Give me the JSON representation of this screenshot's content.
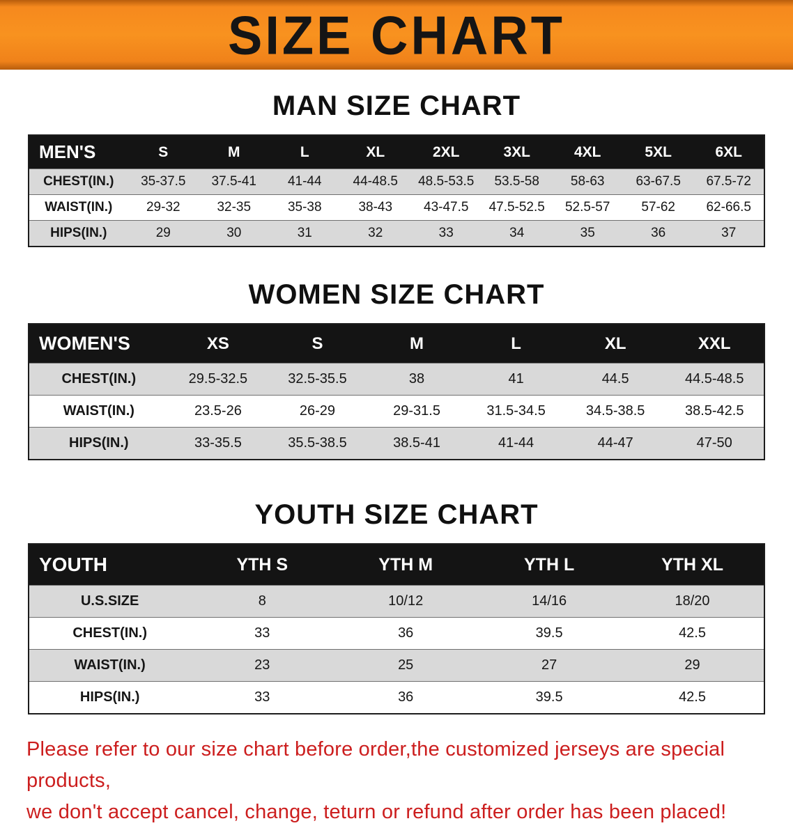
{
  "banner": {
    "title": "SIZE CHART"
  },
  "colors": {
    "banner_orange": "#f6891e",
    "table_header_black": "#141414",
    "row_stripe_gray": "#d9d9d9",
    "note_red": "#cc1e1e"
  },
  "sections": [
    {
      "heading": "MAN SIZE CHART",
      "table": {
        "header": [
          "MEN'S",
          "S",
          "M",
          "L",
          "XL",
          "2XL",
          "3XL",
          "4XL",
          "5XL",
          "6XL"
        ],
        "rows": [
          [
            "CHEST(IN.)",
            "35-37.5",
            "37.5-41",
            "41-44",
            "44-48.5",
            "48.5-53.5",
            "53.5-58",
            "58-63",
            "63-67.5",
            "67.5-72"
          ],
          [
            "WAIST(IN.)",
            "29-32",
            "32-35",
            "35-38",
            "38-43",
            "43-47.5",
            "47.5-52.5",
            "52.5-57",
            "57-62",
            "62-66.5"
          ],
          [
            "HIPS(IN.)",
            "29",
            "30",
            "31",
            "32",
            "33",
            "34",
            "35",
            "36",
            "37"
          ]
        ]
      }
    },
    {
      "heading": "WOMEN SIZE CHART",
      "table": {
        "header": [
          "WOMEN'S",
          "XS",
          "S",
          "M",
          "L",
          "XL",
          "XXL"
        ],
        "rows": [
          [
            "CHEST(IN.)",
            "29.5-32.5",
            "32.5-35.5",
            "38",
            "41",
            "44.5",
            "44.5-48.5"
          ],
          [
            "WAIST(IN.)",
            "23.5-26",
            "26-29",
            "29-31.5",
            "31.5-34.5",
            "34.5-38.5",
            "38.5-42.5"
          ],
          [
            "HIPS(IN.)",
            "33-35.5",
            "35.5-38.5",
            "38.5-41",
            "41-44",
            "44-47",
            "47-50"
          ]
        ]
      }
    },
    {
      "heading": "YOUTH SIZE CHART",
      "table": {
        "header": [
          "YOUTH",
          "YTH S",
          "YTH M",
          "YTH L",
          "YTH XL"
        ],
        "rows": [
          [
            "U.S.SIZE",
            "8",
            "10/12",
            "14/16",
            "18/20"
          ],
          [
            "CHEST(IN.)",
            "33",
            "36",
            "39.5",
            "42.5"
          ],
          [
            "WAIST(IN.)",
            "23",
            "25",
            "27",
            "29"
          ],
          [
            "HIPS(IN.)",
            "33",
            "36",
            "39.5",
            "42.5"
          ]
        ]
      }
    }
  ],
  "footer": {
    "line1": "Please refer to our size chart before order,the customized jerseys are special products,",
    "line2": "we don't accept cancel, change, teturn or refund after order has been placed!"
  }
}
